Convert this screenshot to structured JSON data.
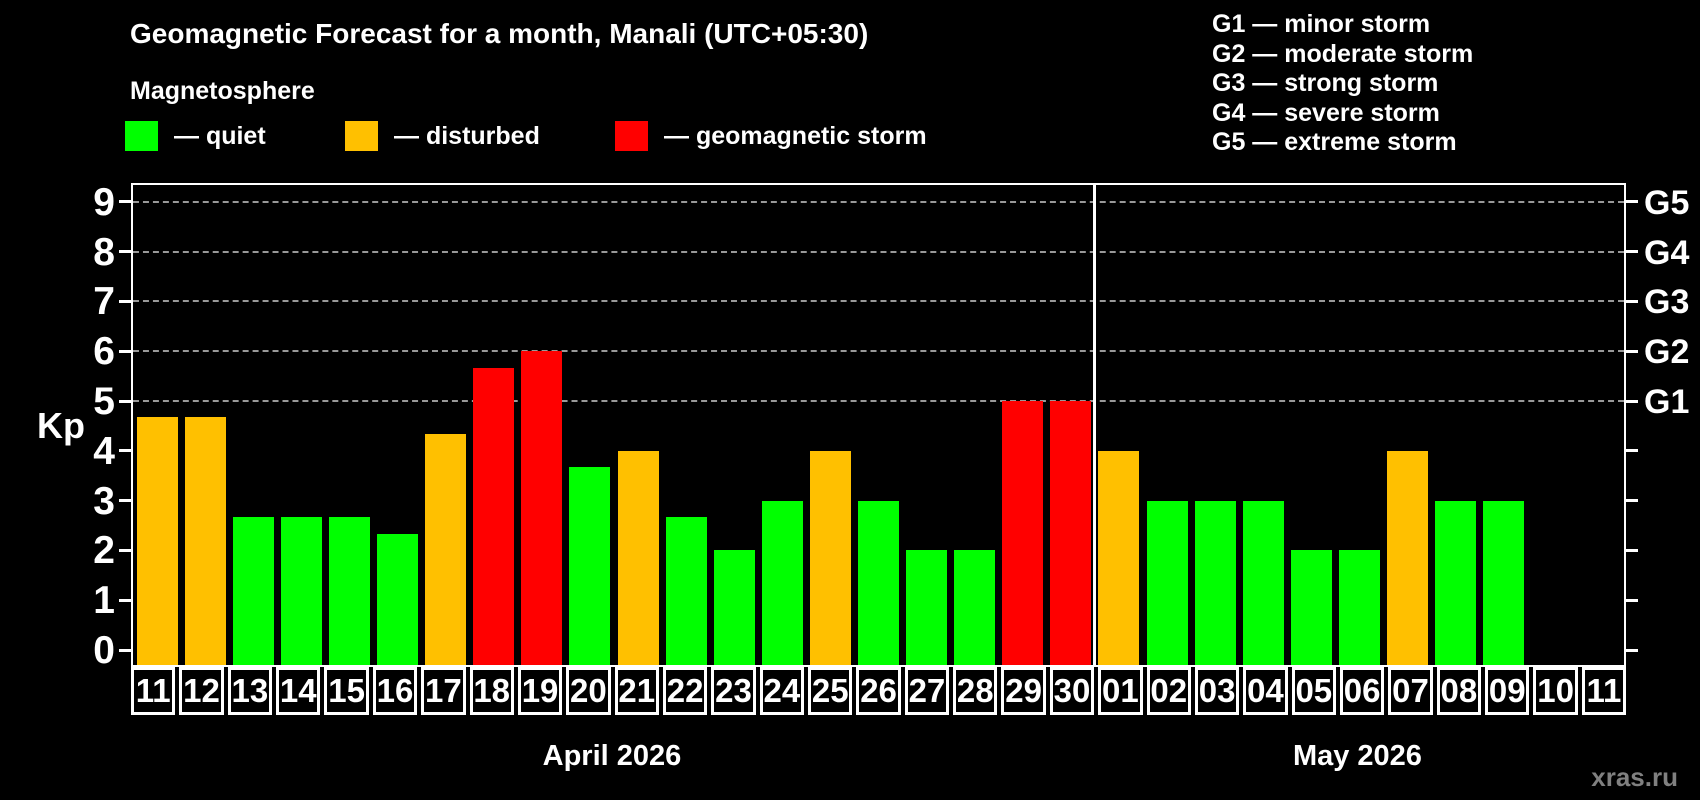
{
  "title": "Geomagnetic Forecast for a month, Manali (UTC+05:30)",
  "subtitle": "Magnetosphere",
  "watermark": "xras.ru",
  "legend": {
    "items": [
      {
        "key": "quiet",
        "label": "— quiet",
        "color": "#00ff00"
      },
      {
        "key": "disturbed",
        "label": "— disturbed",
        "color": "#ffc000"
      },
      {
        "key": "storm",
        "label": "— geomagnetic storm",
        "color": "#ff0000"
      }
    ]
  },
  "g_scale_legend": [
    "G1 — minor storm",
    "G2 — moderate storm",
    "G3 — strong storm",
    "G4 — severe storm",
    "G5 — extreme storm"
  ],
  "chart_data": {
    "type": "bar",
    "title": "Geomagnetic Forecast for a month, Manali (UTC+05:30)",
    "xlabel": "",
    "ylabel": "Kp",
    "ylim": [
      0,
      9.5
    ],
    "y_ticks": [
      0,
      1,
      2,
      3,
      4,
      5,
      6,
      7,
      8,
      9
    ],
    "gridlines_at": [
      5,
      6,
      7,
      8,
      9
    ],
    "grid": "dashed horizontal at storm levels only",
    "right_axis_labels": [
      {
        "label": "G1",
        "value": 5
      },
      {
        "label": "G2",
        "value": 6
      },
      {
        "label": "G3",
        "value": 7
      },
      {
        "label": "G4",
        "value": 8
      },
      {
        "label": "G5",
        "value": 9
      }
    ],
    "months": [
      {
        "label": "April 2026",
        "days": 20
      },
      {
        "label": "May 2026",
        "days": 11
      }
    ],
    "categories": [
      "11",
      "12",
      "13",
      "14",
      "15",
      "16",
      "17",
      "18",
      "19",
      "20",
      "21",
      "22",
      "23",
      "24",
      "25",
      "26",
      "27",
      "28",
      "29",
      "30",
      "01",
      "02",
      "03",
      "04",
      "05",
      "06",
      "07",
      "08",
      "09",
      "10",
      "11"
    ],
    "values": [
      4.67,
      4.67,
      2.67,
      2.67,
      2.67,
      2.33,
      4.33,
      5.67,
      6,
      3.67,
      4,
      2.67,
      2,
      3,
      4,
      3,
      2,
      2,
      5,
      5,
      4,
      3,
      3,
      3,
      2,
      2,
      4,
      3,
      3,
      null,
      null
    ],
    "statuses": [
      "disturbed",
      "disturbed",
      "quiet",
      "quiet",
      "quiet",
      "quiet",
      "disturbed",
      "storm",
      "storm",
      "quiet",
      "disturbed",
      "quiet",
      "quiet",
      "quiet",
      "disturbed",
      "quiet",
      "quiet",
      "quiet",
      "storm",
      "storm",
      "disturbed",
      "quiet",
      "quiet",
      "quiet",
      "quiet",
      "quiet",
      "disturbed",
      "quiet",
      "quiet",
      null,
      null
    ],
    "colors": {
      "quiet": "#00ff00",
      "disturbed": "#ffc000",
      "storm": "#ff0000"
    }
  }
}
